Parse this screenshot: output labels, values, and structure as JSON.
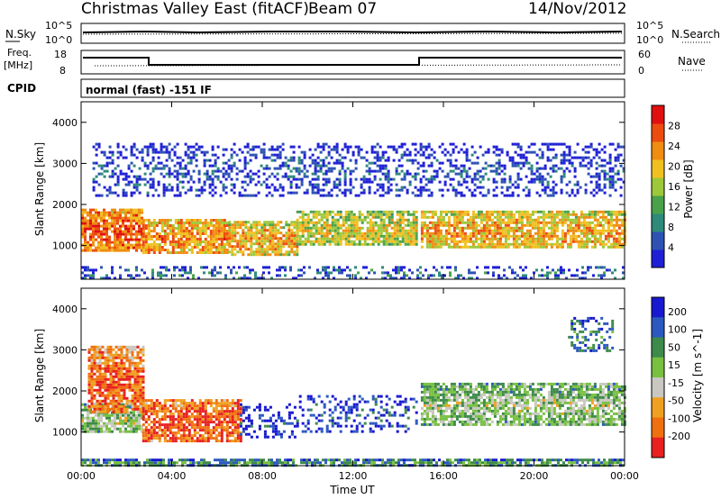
{
  "header": {
    "station": "Christmas Valley East (fitACF)",
    "beam": "Beam 07",
    "date": "14/Nov/2012"
  },
  "summary": {
    "nsky_label": "N.Sky",
    "nsearch_label": "N.Search",
    "noise_ticks": [
      "10^5",
      "10^0"
    ],
    "freq_label_1": "Freq.",
    "freq_label_2": "[MHz]",
    "freq_ticks": [
      "18",
      "8"
    ],
    "nave_label": "Nave",
    "nave_ticks": [
      "60",
      "0"
    ],
    "cpid_label": "CPID",
    "cpid_text": "normal (fast) -151 IF"
  },
  "chart_data": [
    {
      "type": "heatmap",
      "panel": "power",
      "ylabel": "Slant Range [km]",
      "xlabel": "",
      "x_ticks": [
        "00:00",
        "04:00",
        "08:00",
        "12:00",
        "16:00",
        "20:00",
        "00:00"
      ],
      "y_ticks": [
        "1000",
        "2000",
        "3000",
        "4000"
      ],
      "ylim": [
        180,
        4500
      ],
      "colorbar": {
        "label": "Power [dB]",
        "ticks": [
          "4",
          "8",
          "12",
          "16",
          "20",
          "24",
          "28"
        ],
        "range": [
          0,
          30
        ],
        "colors": [
          "#1f1fd6",
          "#2d52b4",
          "#2f8a7a",
          "#49a24a",
          "#9cc83a",
          "#f0c020",
          "#f08c10",
          "#ec4c10",
          "#e01010"
        ]
      },
      "bands": [
        {
          "t0": 0.0,
          "t1": 2.7,
          "r0": 900,
          "r1": 1900,
          "level": 0.85
        },
        {
          "t0": 2.7,
          "t1": 6.5,
          "r0": 850,
          "r1": 1650,
          "level": 0.75
        },
        {
          "t0": 6.5,
          "t1": 9.5,
          "r0": 800,
          "r1": 1600,
          "level": 0.7
        },
        {
          "t0": 9.5,
          "t1": 14.8,
          "r0": 1050,
          "r1": 1850,
          "level": 0.6
        },
        {
          "t0": 15.0,
          "t1": 24.0,
          "r0": 950,
          "r1": 1850,
          "level": 0.7
        },
        {
          "t0": 0.0,
          "t1": 24.0,
          "r0": 200,
          "r1": 500,
          "level": 0.25
        },
        {
          "t0": 0.5,
          "t1": 24.0,
          "r0": 2200,
          "r1": 3500,
          "level": 0.15
        }
      ]
    },
    {
      "type": "heatmap",
      "panel": "velocity",
      "ylabel": "Slant Range [km]",
      "xlabel": "Time UT",
      "x_ticks": [
        "00:00",
        "04:00",
        "08:00",
        "12:00",
        "16:00",
        "20:00",
        "00:00"
      ],
      "y_ticks": [
        "1000",
        "2000",
        "3000",
        "4000"
      ],
      "ylim": [
        180,
        4500
      ],
      "colorbar": {
        "label": "Velocity [m s^-1]",
        "ticks": [
          "200",
          "100",
          "50",
          "15",
          "-15",
          "-50",
          "-100",
          "-200"
        ],
        "range": [
          -250,
          250
        ],
        "colors": [
          "#1818d0",
          "#2c58c0",
          "#3e8a4a",
          "#78c040",
          "#c8c8c0",
          "#f0a020",
          "#f07010",
          "#e82020"
        ]
      },
      "bands": [
        {
          "t0": 0.0,
          "t1": 2.7,
          "r0": 1000,
          "r1": 1700,
          "level": 0.5
        },
        {
          "t0": 0.3,
          "t1": 2.7,
          "r0": 1500,
          "r1": 3100,
          "level": 0.85
        },
        {
          "t0": 2.7,
          "t1": 7.0,
          "r0": 800,
          "r1": 1800,
          "level": 0.9
        },
        {
          "t0": 7.0,
          "t1": 9.5,
          "r0": 900,
          "r1": 1700,
          "level": 0.15
        },
        {
          "t0": 9.5,
          "t1": 14.8,
          "r0": 1000,
          "r1": 1900,
          "level": 0.2
        },
        {
          "t0": 15.0,
          "t1": 24.0,
          "r0": 1200,
          "r1": 2200,
          "level": 0.5
        },
        {
          "t0": 21.5,
          "t1": 23.5,
          "r0": 3000,
          "r1": 3800,
          "level": 0.3
        },
        {
          "t0": 0.0,
          "t1": 24.0,
          "r0": 200,
          "r1": 350,
          "level": 0.35
        }
      ]
    }
  ]
}
